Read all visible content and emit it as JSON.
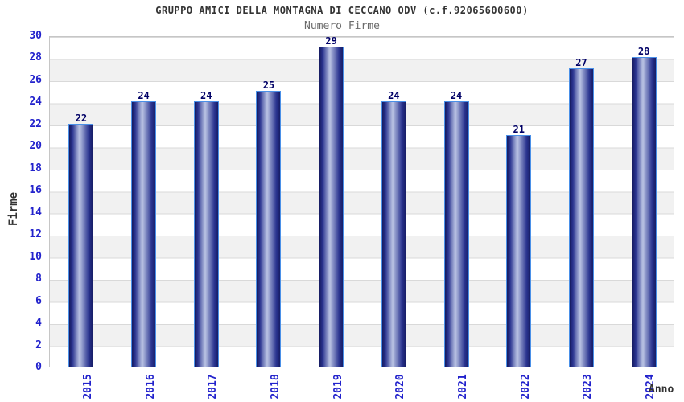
{
  "header": {
    "title": "GRUPPO AMICI DELLA MONTAGNA DI CECCANO ODV (c.f.92065600600)",
    "subtitle": "Numero Firme"
  },
  "chart_data": {
    "type": "bar",
    "title": "GRUPPO AMICI DELLA MONTAGNA DI CECCANO ODV (c.f.92065600600)",
    "subtitle": "Numero Firme",
    "categories": [
      "2015",
      "2016",
      "2017",
      "2018",
      "2019",
      "2020",
      "2021",
      "2022",
      "2023",
      "2024"
    ],
    "values": [
      22,
      24,
      24,
      25,
      29,
      24,
      24,
      21,
      27,
      28
    ],
    "xlabel": "Anno",
    "ylabel": "Firme",
    "ylim": [
      0,
      30
    ],
    "ytick_step": 2,
    "yticks": [
      0,
      2,
      4,
      6,
      8,
      10,
      12,
      14,
      16,
      18,
      20,
      22,
      24,
      26,
      28,
      30
    ],
    "grid": true,
    "alternating_row_bands": true,
    "legend_position": "none",
    "colors": {
      "bar_dark": "#1a2070",
      "bar_highlight": "#bac3e3",
      "bar_border": "#4a90e8",
      "axis_tick_label": "#2222cc",
      "value_label": "#000066",
      "title_text": "#333333",
      "subtitle_text": "#6b6b6b",
      "band_gray": "#f1f1f1",
      "gridline": "#d9d9d9",
      "plot_border": "#c6c6c6"
    }
  }
}
